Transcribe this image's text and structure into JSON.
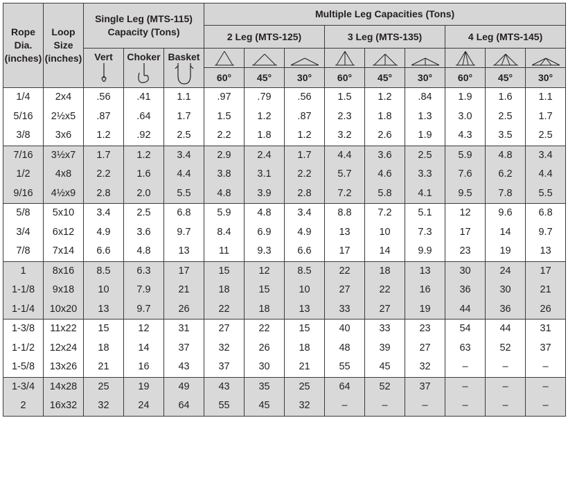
{
  "header": {
    "rope_dia": [
      "Rope",
      "Dia.",
      "(inches)"
    ],
    "loop_size": [
      "Loop",
      "Size",
      "(inches)"
    ],
    "single_leg": [
      "Single Leg (MTS-115)",
      "Capacity (Tons)"
    ],
    "multi_leg": "Multiple Leg Capacities (Tons)",
    "two_leg": "2 Leg (MTS-125)",
    "three_leg": "3 Leg (MTS-135)",
    "four_leg": "4 Leg (MTS-145)",
    "vert": "Vert",
    "choker": "Choker",
    "basket": "Basket",
    "angles": [
      "60°",
      "45°",
      "30°"
    ]
  },
  "groups": [
    {
      "rows": [
        [
          "1/4",
          "2x4",
          ".56",
          ".41",
          "1.1",
          ".97",
          ".79",
          ".56",
          "1.5",
          "1.2",
          ".84",
          "1.9",
          "1.6",
          "1.1"
        ],
        [
          "5/16",
          "2½x5",
          ".87",
          ".64",
          "1.7",
          "1.5",
          "1.2",
          ".87",
          "2.3",
          "1.8",
          "1.3",
          "3.0",
          "2.5",
          "1.7"
        ],
        [
          "3/8",
          "3x6",
          "1.2",
          ".92",
          "2.5",
          "2.2",
          "1.8",
          "1.2",
          "3.2",
          "2.6",
          "1.9",
          "4.3",
          "3.5",
          "2.5"
        ]
      ]
    },
    {
      "rows": [
        [
          "7/16",
          "3½x7",
          "1.7",
          "1.2",
          "3.4",
          "2.9",
          "2.4",
          "1.7",
          "4.4",
          "3.6",
          "2.5",
          "5.9",
          "4.8",
          "3.4"
        ],
        [
          "1/2",
          "4x8",
          "2.2",
          "1.6",
          "4.4",
          "3.8",
          "3.1",
          "2.2",
          "5.7",
          "4.6",
          "3.3",
          "7.6",
          "6.2",
          "4.4"
        ],
        [
          "9/16",
          "4½x9",
          "2.8",
          "2.0",
          "5.5",
          "4.8",
          "3.9",
          "2.8",
          "7.2",
          "5.8",
          "4.1",
          "9.5",
          "7.8",
          "5.5"
        ]
      ]
    },
    {
      "rows": [
        [
          "5/8",
          "5x10",
          "3.4",
          "2.5",
          "6.8",
          "5.9",
          "4.8",
          "3.4",
          "8.8",
          "7.2",
          "5.1",
          "12",
          "9.6",
          "6.8"
        ],
        [
          "3/4",
          "6x12",
          "4.9",
          "3.6",
          "9.7",
          "8.4",
          "6.9",
          "4.9",
          "13",
          "10",
          "7.3",
          "17",
          "14",
          "9.7"
        ],
        [
          "7/8",
          "7x14",
          "6.6",
          "4.8",
          "13",
          "11",
          "9.3",
          "6.6",
          "17",
          "14",
          "9.9",
          "23",
          "19",
          "13"
        ]
      ]
    },
    {
      "rows": [
        [
          "1",
          "8x16",
          "8.5",
          "6.3",
          "17",
          "15",
          "12",
          "8.5",
          "22",
          "18",
          "13",
          "30",
          "24",
          "17"
        ],
        [
          "1-1/8",
          "9x18",
          "10",
          "7.9",
          "21",
          "18",
          "15",
          "10",
          "27",
          "22",
          "16",
          "36",
          "30",
          "21"
        ],
        [
          "1-1/4",
          "10x20",
          "13",
          "9.7",
          "26",
          "22",
          "18",
          "13",
          "33",
          "27",
          "19",
          "44",
          "36",
          "26"
        ]
      ]
    },
    {
      "rows": [
        [
          "1-3/8",
          "11x22",
          "15",
          "12",
          "31",
          "27",
          "22",
          "15",
          "40",
          "33",
          "23",
          "54",
          "44",
          "31"
        ],
        [
          "1-1/2",
          "12x24",
          "18",
          "14",
          "37",
          "32",
          "26",
          "18",
          "48",
          "39",
          "27",
          "63",
          "52",
          "37"
        ],
        [
          "1-5/8",
          "13x26",
          "21",
          "16",
          "43",
          "37",
          "30",
          "21",
          "55",
          "45",
          "32",
          "–",
          "–",
          "–"
        ]
      ]
    },
    {
      "rows": [
        [
          "1-3/4",
          "14x28",
          "25",
          "19",
          "49",
          "43",
          "35",
          "25",
          "64",
          "52",
          "37",
          "–",
          "–",
          "–"
        ],
        [
          "2",
          "16x32",
          "32",
          "24",
          "64",
          "55",
          "45",
          "32",
          "–",
          "–",
          "–",
          "–",
          "–",
          "–"
        ]
      ]
    }
  ]
}
